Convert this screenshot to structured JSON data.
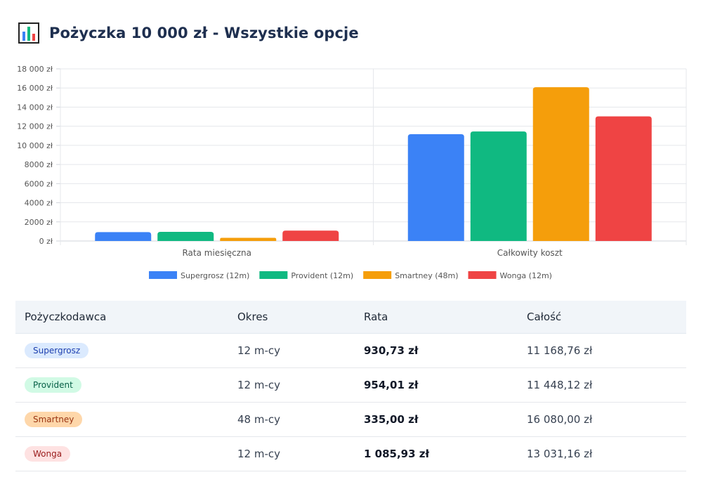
{
  "title": "Pożyczka 10 000 zł - Wszystkie opcje",
  "icon": "bar-chart-icon",
  "chart_data": {
    "type": "bar",
    "categories": [
      "Rata miesięczna",
      "Całkowity koszt"
    ],
    "series": [
      {
        "name": "Supergrosz (12m)",
        "color": "#3b82f6",
        "values": [
          930.73,
          11168.76
        ]
      },
      {
        "name": "Provident (12m)",
        "color": "#10b981",
        "values": [
          954.01,
          11448.12
        ]
      },
      {
        "name": "Smartney (48m)",
        "color": "#f59e0b",
        "values": [
          335.0,
          16080.0
        ]
      },
      {
        "name": "Wonga (12m)",
        "color": "#ef4444",
        "values": [
          1085.93,
          13031.16
        ]
      }
    ],
    "yticks": [
      "0 zł",
      "2000 zł",
      "4000 zł",
      "6000 zł",
      "8000 zł",
      "10 000 zł",
      "12 000 zł",
      "14 000 zł",
      "16 000 zł",
      "18 000 zł"
    ],
    "ylim": [
      0,
      18000
    ],
    "grid": true,
    "legend_position": "bottom"
  },
  "table": {
    "headers": [
      "Pożyczkodawca",
      "Okres",
      "Rata",
      "Całość"
    ],
    "rows": [
      {
        "lender": "Supergrosz",
        "period": "12 m-cy",
        "rate": "930,73 zł",
        "total": "11 168,76 zł",
        "badge_bg": "#dbeafe",
        "badge_fg": "#1e40af"
      },
      {
        "lender": "Provident",
        "period": "12 m-cy",
        "rate": "954,01 zł",
        "total": "11 448,12 zł",
        "badge_bg": "#d1fae5",
        "badge_fg": "#065f46"
      },
      {
        "lender": "Smartney",
        "period": "48 m-cy",
        "rate": "335,00 zł",
        "total": "16 080,00 zł",
        "badge_bg": "#fed7aa",
        "badge_fg": "#9a3412"
      },
      {
        "lender": "Wonga",
        "period": "12 m-cy",
        "rate": "1 085,93 zł",
        "total": "13 031,16 zł",
        "badge_bg": "#fee2e2",
        "badge_fg": "#991b1b"
      }
    ]
  }
}
